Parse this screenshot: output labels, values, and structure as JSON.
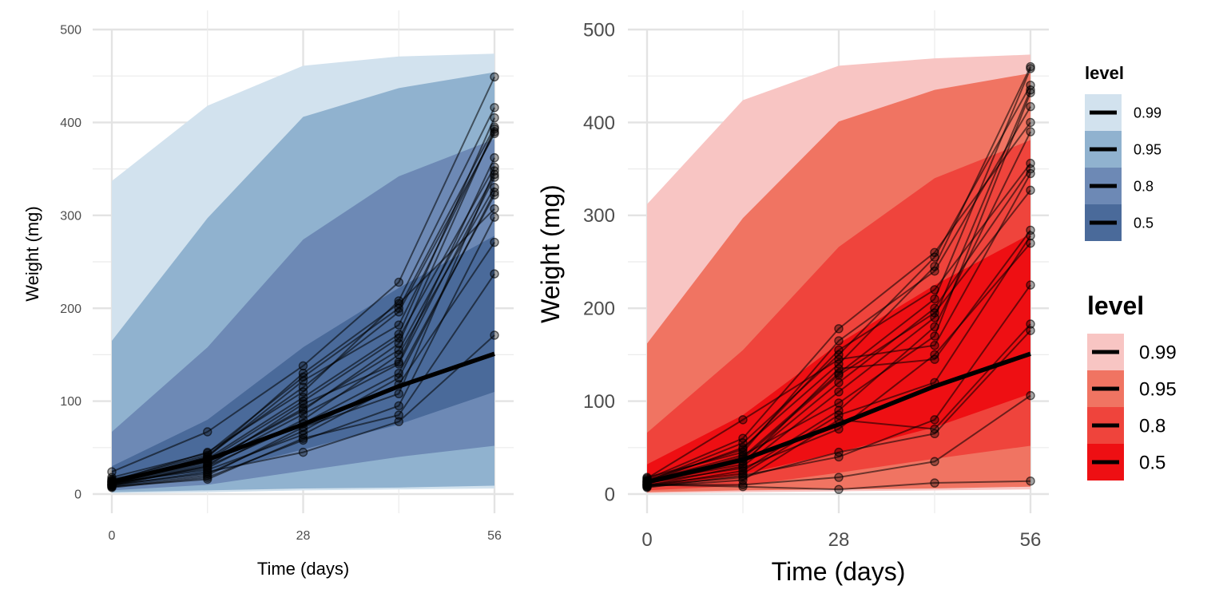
{
  "chart_data": [
    {
      "type": "area",
      "panel": "left",
      "xlabel": "Time (days)",
      "ylabel": "Weight (mg)",
      "xlim": [
        -2,
        63
      ],
      "ylim": [
        -20,
        500
      ],
      "x_ticks": [
        0,
        28,
        56
      ],
      "x_tick_labels": [
        "0",
        "28",
        "56"
      ],
      "y_ticks": [
        0,
        100,
        200,
        300,
        400,
        500
      ],
      "y_tick_labels": [
        "0",
        "100",
        "200",
        "300",
        "400",
        "500"
      ],
      "grid": true,
      "x": [
        0,
        14,
        28,
        42,
        56
      ],
      "median": [
        13,
        37,
        75,
        116,
        151
      ],
      "bands": [
        {
          "level": "0.99",
          "color": "#d2e2ee",
          "lower": [
            1,
            2,
            4,
            5,
            6
          ],
          "upper": [
            337,
            418,
            461,
            471,
            474
          ]
        },
        {
          "level": "0.95",
          "color": "#90b2cf",
          "lower": [
            2,
            4,
            6,
            7,
            9
          ],
          "upper": [
            165,
            297,
            406,
            437,
            454
          ]
        },
        {
          "level": "0.8",
          "color": "#6d89b5",
          "lower": [
            4,
            10,
            25,
            40,
            52
          ],
          "upper": [
            67,
            158,
            274,
            342,
            382
          ]
        },
        {
          "level": "0.5",
          "color": "#4a6a9a",
          "lower": [
            7,
            22,
            48,
            75,
            110
          ],
          "upper": [
            30,
            80,
            158,
            222,
            278
          ]
        }
      ],
      "individuals": [
        [
          12,
          40,
          122,
          182,
          390
        ],
        [
          9,
          30,
          97,
          142,
          362
        ],
        [
          14,
          45,
          110,
          208,
          416
        ],
        [
          10,
          22,
          68,
          125,
          325
        ],
        [
          16,
          35,
          90,
          162,
          393
        ],
        [
          8,
          20,
          72,
          108,
          348
        ],
        [
          24,
          67,
          138,
          228,
          449
        ],
        [
          11,
          28,
          80,
          150,
          330
        ],
        [
          13,
          38,
          104,
          172,
          405
        ],
        [
          7,
          18,
          58,
          95,
          298
        ],
        [
          15,
          42,
          115,
          196,
          388
        ],
        [
          10,
          32,
          86,
          140,
          341
        ],
        [
          12,
          26,
          64,
          118,
          271
        ],
        [
          18,
          44,
          126,
          200,
          395
        ],
        [
          9,
          24,
          45,
          78,
          171
        ],
        [
          11,
          34,
          92,
          155,
          344
        ],
        [
          14,
          36,
          100,
          168,
          352
        ],
        [
          8,
          16,
          60,
          85,
          237
        ],
        [
          13,
          40,
          130,
          205,
          307
        ],
        [
          10,
          30,
          76,
          130,
          322
        ]
      ],
      "legend": null
    },
    {
      "type": "area",
      "panel": "right",
      "xlabel": "Time (days)",
      "ylabel": "Weight (mg)",
      "xlim": [
        -2,
        63
      ],
      "ylim": [
        -20,
        500
      ],
      "x_ticks": [
        0,
        28,
        56
      ],
      "x_tick_labels": [
        "0",
        "28",
        "56"
      ],
      "y_ticks": [
        0,
        100,
        200,
        300,
        400,
        500
      ],
      "y_tick_labels": [
        "0",
        "100",
        "200",
        "300",
        "400",
        "500"
      ],
      "grid": true,
      "x": [
        0,
        14,
        28,
        42,
        56
      ],
      "median": [
        13,
        37,
        75,
        116,
        151
      ],
      "bands": [
        {
          "level": "0.99",
          "color": "#f8c5c3",
          "lower": [
            1,
            2,
            3,
            4,
            5
          ],
          "upper": [
            312,
            424,
            461,
            469,
            473
          ]
        },
        {
          "level": "0.95",
          "color": "#f07462",
          "lower": [
            2,
            4,
            5,
            6,
            8
          ],
          "upper": [
            162,
            297,
            401,
            435,
            453
          ]
        },
        {
          "level": "0.8",
          "color": "#ef443c",
          "lower": [
            4,
            9,
            23,
            38,
            52
          ],
          "upper": [
            66,
            155,
            266,
            340,
            381
          ]
        },
        {
          "level": "0.5",
          "color": "#ee0f13",
          "lower": [
            7,
            21,
            45,
            72,
            108
          ],
          "upper": [
            32,
            85,
            162,
            225,
            280
          ]
        }
      ],
      "individuals": [
        [
          12,
          40,
          130,
          210,
          458
        ],
        [
          9,
          30,
          110,
          190,
          435
        ],
        [
          14,
          55,
          150,
          255,
          440
        ],
        [
          10,
          8,
          5,
          12,
          14
        ],
        [
          16,
          60,
          178,
          260,
          400
        ],
        [
          8,
          25,
          90,
          180,
          390
        ],
        [
          18,
          45,
          165,
          240,
          417
        ],
        [
          11,
          35,
          120,
          200,
          350
        ],
        [
          13,
          50,
          140,
          245,
          460
        ],
        [
          7,
          20,
          40,
          80,
          225
        ],
        [
          15,
          48,
          155,
          220,
          356
        ],
        [
          10,
          10,
          18,
          35,
          106
        ],
        [
          12,
          28,
          70,
          150,
          270
        ],
        [
          9,
          18,
          45,
          65,
          176
        ],
        [
          17,
          80,
          145,
          160,
          345
        ],
        [
          11,
          38,
          128,
          195,
          327
        ],
        [
          14,
          42,
          98,
          170,
          432
        ],
        [
          8,
          15,
          80,
          70,
          183
        ],
        [
          13,
          32,
          135,
          145,
          284
        ],
        [
          10,
          22,
          85,
          120,
          278
        ]
      ],
      "legend": [
        {
          "title": "level",
          "size": "small",
          "entries": [
            {
              "label": "0.99",
              "color": "#d2e2ee"
            },
            {
              "label": "0.95",
              "color": "#90b2cf"
            },
            {
              "label": "0.8",
              "color": "#6d89b5"
            },
            {
              "label": "0.5",
              "color": "#4a6a9a"
            }
          ]
        },
        {
          "title": "level",
          "size": "large",
          "entries": [
            {
              "label": "0.99",
              "color": "#f8c5c3"
            },
            {
              "label": "0.95",
              "color": "#f07462"
            },
            {
              "label": "0.8",
              "color": "#ef443c"
            },
            {
              "label": "0.5",
              "color": "#ee0f13"
            }
          ]
        }
      ]
    }
  ]
}
